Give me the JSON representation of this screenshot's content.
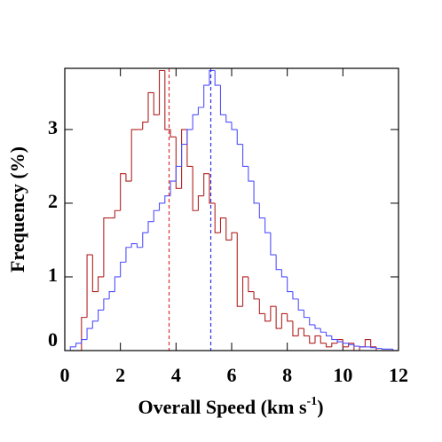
{
  "chart_data": {
    "type": "histogram",
    "xlabel": {
      "text": "Overall Speed (km s",
      "superscript": "-1",
      "suffix": ")"
    },
    "ylabel": "Frequency (%)",
    "xlim": [
      0,
      12
    ],
    "ylim": [
      0,
      3.83
    ],
    "xticks": [
      0,
      2,
      4,
      6,
      8,
      10,
      12
    ],
    "yticks": [
      0,
      1,
      2,
      3
    ],
    "bins": [
      0.2,
      0.4,
      0.6,
      0.8,
      1.0,
      1.2,
      1.4,
      1.6,
      1.8,
      2.0,
      2.2,
      2.4,
      2.6,
      2.8,
      3.0,
      3.2,
      3.4,
      3.6,
      3.8,
      4.0,
      4.2,
      4.4,
      4.6,
      4.8,
      5.0,
      5.2,
      5.4,
      5.6,
      5.8,
      6.0,
      6.2,
      6.4,
      6.6,
      6.8,
      7.0,
      7.2,
      7.4,
      7.6,
      7.8,
      8.0,
      8.2,
      8.4,
      8.6,
      8.8,
      9.0,
      9.2,
      9.4,
      9.6,
      9.8,
      10.0,
      10.2,
      10.4,
      10.6,
      10.8,
      11.0,
      11.2,
      11.4,
      11.6,
      11.8,
      12.0
    ],
    "series": [
      {
        "color": "#b22222",
        "values": [
          0,
          0,
          0.45,
          1.3,
          0.8,
          1.0,
          1.8,
          1.8,
          1.9,
          2.4,
          2.3,
          3.0,
          3.0,
          3.1,
          3.5,
          3.2,
          3.8,
          3.0,
          2.9,
          2.2,
          3.0,
          2.5,
          1.9,
          2.1,
          2.4,
          2.0,
          1.6,
          1.8,
          1.5,
          1.6,
          0.6,
          1.0,
          0.8,
          0.7,
          0.5,
          0.4,
          0.6,
          0.3,
          0.5,
          0.4,
          0.2,
          0.3,
          0.2,
          0.1,
          0.2,
          0.1,
          0.05,
          0.1,
          0.15,
          0.05,
          0.1,
          0,
          0.05,
          0.15,
          0.05,
          0,
          0,
          0,
          0
        ]
      },
      {
        "color": "#5050ff",
        "values": [
          0.05,
          0.1,
          0.15,
          0.3,
          0.4,
          0.55,
          0.7,
          0.8,
          1.0,
          1.2,
          1.4,
          1.45,
          1.4,
          1.6,
          1.75,
          1.9,
          2.0,
          2.1,
          2.3,
          2.5,
          2.8,
          3.0,
          3.2,
          3.3,
          3.6,
          3.8,
          3.6,
          3.2,
          3.1,
          3.0,
          2.8,
          2.5,
          2.3,
          2.0,
          1.8,
          1.6,
          1.3,
          1.1,
          1.0,
          0.8,
          0.7,
          0.55,
          0.45,
          0.35,
          0.3,
          0.25,
          0.2,
          0.15,
          0.12,
          0.1,
          0.08,
          0.06,
          0.05,
          0.05,
          0.04,
          0.03,
          0.02,
          0.02,
          0
        ]
      }
    ],
    "vlines": [
      {
        "value": 3.75,
        "color": "#e03030"
      },
      {
        "value": 5.25,
        "color": "#3030e0"
      }
    ]
  }
}
